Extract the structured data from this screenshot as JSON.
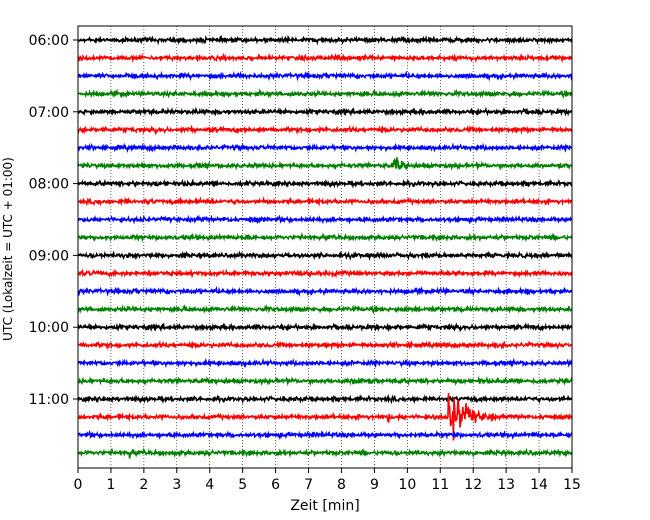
{
  "chart_data": {
    "type": "line",
    "title": "",
    "xlabel": "Zeit  [min]",
    "ylabel": "UTC (Lokalzeit = UTC + 01:00)",
    "xlim": [
      0,
      15
    ],
    "x_ticks": [
      0,
      1,
      2,
      3,
      4,
      5,
      6,
      7,
      8,
      9,
      10,
      11,
      12,
      13,
      14,
      15
    ],
    "y_tick_labels": [
      "06:00",
      "07:00",
      "08:00",
      "09:00",
      "10:00",
      "11:00"
    ],
    "grid": "vertical dotted",
    "trace_minutes": 15,
    "trace_colors": [
      "#000000",
      "#ff0000",
      "#0000ff",
      "#008000"
    ],
    "traces": [
      {
        "start": "06:00",
        "color": "#000000",
        "events": []
      },
      {
        "start": "06:15",
        "color": "#ff0000",
        "events": []
      },
      {
        "start": "06:30",
        "color": "#0000ff",
        "events": []
      },
      {
        "start": "06:45",
        "color": "#008000",
        "events": []
      },
      {
        "start": "07:00",
        "color": "#000000",
        "events": []
      },
      {
        "start": "07:15",
        "color": "#ff0000",
        "events": []
      },
      {
        "start": "07:30",
        "color": "#0000ff",
        "events": []
      },
      {
        "start": "07:45",
        "color": "#008000",
        "events": [
          {
            "t": 9.6,
            "dur": 0.8,
            "amp": 2.8
          }
        ]
      },
      {
        "start": "08:00",
        "color": "#000000",
        "events": []
      },
      {
        "start": "08:15",
        "color": "#ff0000",
        "events": []
      },
      {
        "start": "08:30",
        "color": "#0000ff",
        "events": []
      },
      {
        "start": "08:45",
        "color": "#008000",
        "events": []
      },
      {
        "start": "09:00",
        "color": "#000000",
        "events": []
      },
      {
        "start": "09:15",
        "color": "#ff0000",
        "events": []
      },
      {
        "start": "09:30",
        "color": "#0000ff",
        "events": []
      },
      {
        "start": "09:45",
        "color": "#008000",
        "events": []
      },
      {
        "start": "10:00",
        "color": "#000000",
        "events": [
          {
            "t": 3.1,
            "dur": 0.6,
            "amp": 0.6
          },
          {
            "t": 5.0,
            "dur": 0.4,
            "amp": 0.5
          }
        ]
      },
      {
        "start": "10:15",
        "color": "#ff0000",
        "events": [
          {
            "t": 5.0,
            "dur": 0.6,
            "amp": 0.8
          },
          {
            "t": 10.1,
            "dur": 0.5,
            "amp": 0.6
          }
        ]
      },
      {
        "start": "10:30",
        "color": "#0000ff",
        "events": [
          {
            "t": 8.3,
            "dur": 3.0,
            "amp": 0.6
          }
        ]
      },
      {
        "start": "10:45",
        "color": "#008000",
        "events": [
          {
            "t": 8.3,
            "dur": 3.0,
            "amp": 1.3
          }
        ]
      },
      {
        "start": "11:00",
        "color": "#000000",
        "events": []
      },
      {
        "start": "11:15",
        "color": "#ff0000",
        "events": [
          {
            "t": 9.4,
            "dur": 0.3,
            "amp": 1.8
          },
          {
            "t": 11.3,
            "dur": 1.3,
            "amp": 8.0
          }
        ]
      },
      {
        "start": "11:30",
        "color": "#0000ff",
        "events": []
      },
      {
        "start": "11:45",
        "color": "#008000",
        "events": [
          {
            "t": 1.6,
            "dur": 0.2,
            "amp": 2.0
          }
        ]
      }
    ]
  }
}
